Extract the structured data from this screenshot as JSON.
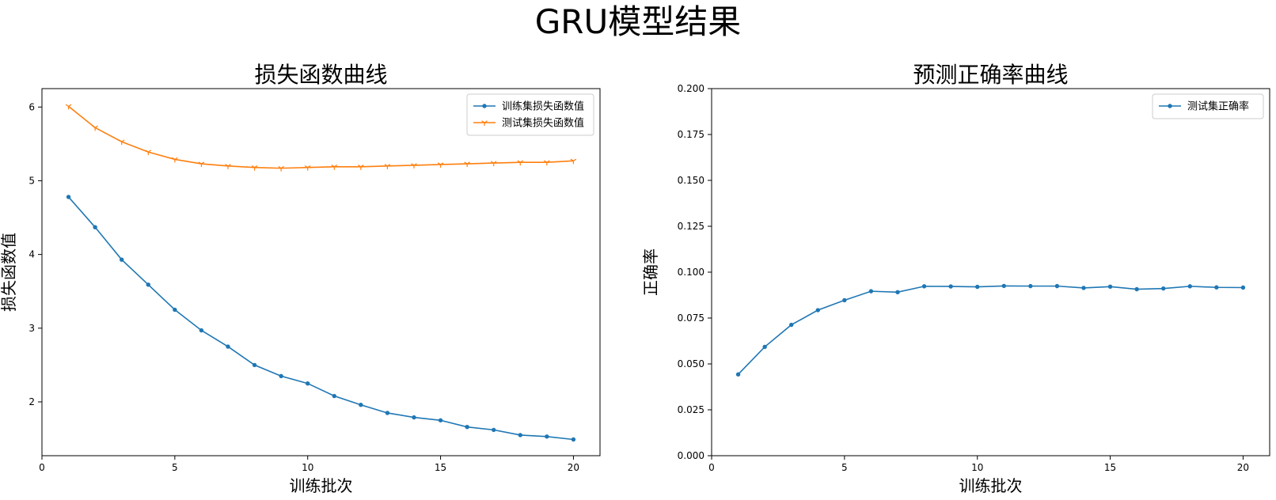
{
  "figure": {
    "suptitle": "GRU模型结果"
  },
  "chart_data": [
    {
      "type": "line",
      "title": "损失函数曲线",
      "xlabel": "训练批次",
      "ylabel": "损失函数值",
      "xlim": [
        0,
        21
      ],
      "ylim": [
        1.27,
        6.25
      ],
      "xticks": [
        0,
        5,
        10,
        15,
        20
      ],
      "yticks": [
        2,
        3,
        4,
        5,
        6
      ],
      "ytick_labels": [
        "2",
        "3",
        "4",
        "5",
        "6"
      ],
      "legend_position": "upper right",
      "x": [
        1,
        2,
        3,
        4,
        5,
        6,
        7,
        8,
        9,
        10,
        11,
        12,
        13,
        14,
        15,
        16,
        17,
        18,
        19,
        20
      ],
      "series": [
        {
          "name": "训练集损失函数值",
          "color": "#1f77b4",
          "marker": "point",
          "values": [
            4.78,
            4.37,
            3.93,
            3.59,
            3.25,
            2.97,
            2.75,
            2.5,
            2.35,
            2.25,
            2.08,
            1.96,
            1.85,
            1.79,
            1.75,
            1.66,
            1.62,
            1.55,
            1.53,
            1.49
          ]
        },
        {
          "name": "测试集损失函数值",
          "color": "#ff7f0e",
          "marker": "tri_down",
          "values": [
            6.01,
            5.72,
            5.53,
            5.39,
            5.29,
            5.23,
            5.2,
            5.18,
            5.17,
            5.18,
            5.19,
            5.19,
            5.2,
            5.21,
            5.22,
            5.23,
            5.24,
            5.25,
            5.25,
            5.27
          ]
        }
      ]
    },
    {
      "type": "line",
      "title": "预测正确率曲线",
      "xlabel": "训练批次",
      "ylabel": "正确率",
      "xlim": [
        0,
        21
      ],
      "ylim": [
        0.0,
        0.2
      ],
      "xticks": [
        0,
        5,
        10,
        15,
        20
      ],
      "yticks": [
        0.0,
        0.025,
        0.05,
        0.075,
        0.1,
        0.125,
        0.15,
        0.175,
        0.2
      ],
      "ytick_labels": [
        "0.000",
        "0.025",
        "0.050",
        "0.075",
        "0.100",
        "0.125",
        "0.150",
        "0.175",
        "0.200"
      ],
      "legend_position": "upper right",
      "x": [
        1,
        2,
        3,
        4,
        5,
        6,
        7,
        8,
        9,
        10,
        11,
        12,
        13,
        14,
        15,
        16,
        17,
        18,
        19,
        20
      ],
      "series": [
        {
          "name": "测试集正确率",
          "color": "#1f77b4",
          "marker": "point",
          "values": [
            0.0443,
            0.0593,
            0.0713,
            0.0793,
            0.0847,
            0.0896,
            0.0891,
            0.0923,
            0.0922,
            0.092,
            0.0925,
            0.0924,
            0.0924,
            0.0914,
            0.0921,
            0.0907,
            0.0911,
            0.0923,
            0.0917,
            0.0916
          ]
        }
      ]
    }
  ]
}
